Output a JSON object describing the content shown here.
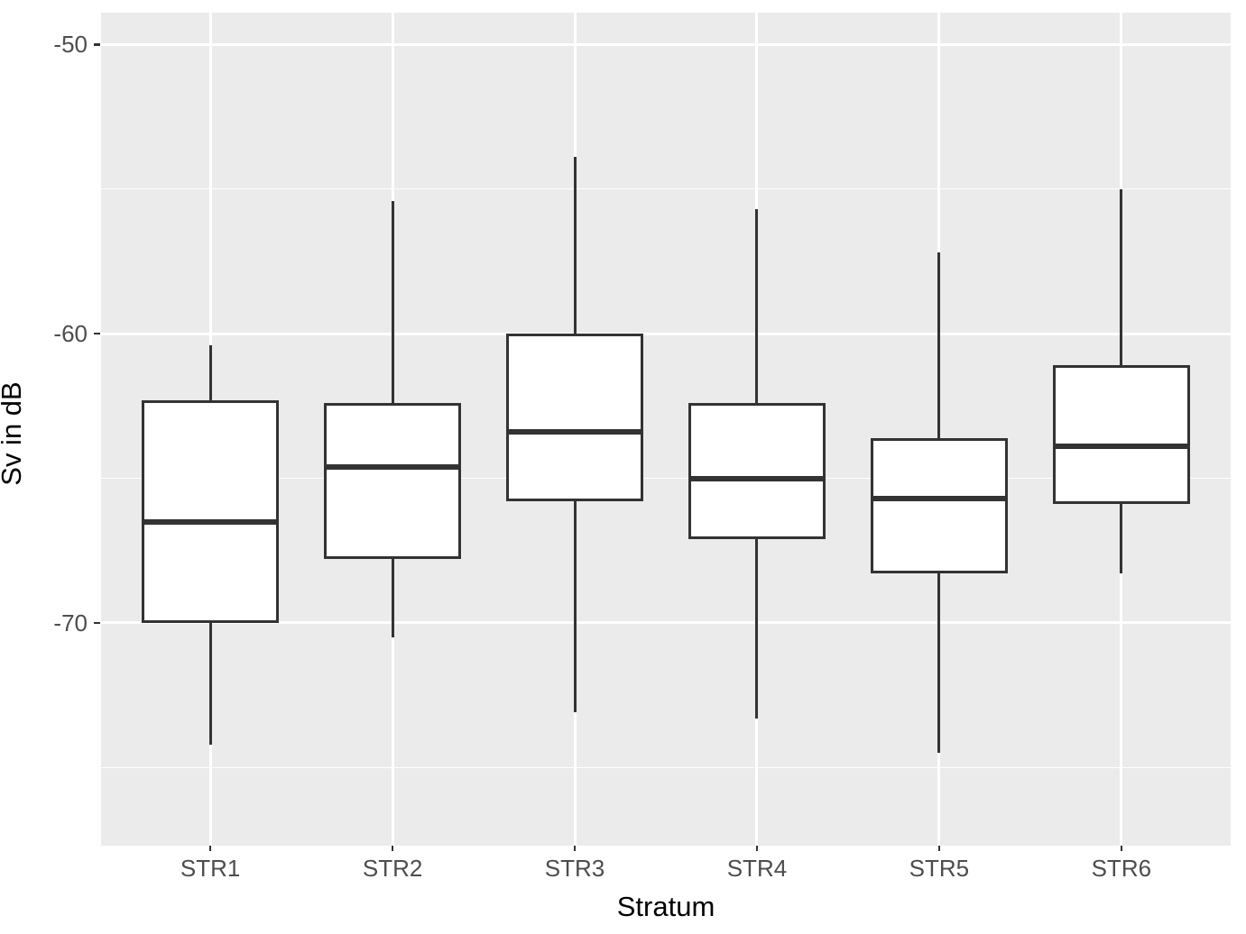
{
  "chart_data": {
    "type": "boxplot",
    "title": "",
    "xlabel": "Stratum",
    "ylabel": "Sv in dB",
    "categories": [
      "STR1",
      "STR2",
      "STR3",
      "STR4",
      "STR5",
      "STR6"
    ],
    "series": [
      {
        "name": "STR1",
        "whisker_low": -74.2,
        "q1": -70.0,
        "median": -66.5,
        "q3": -62.3,
        "whisker_high": -60.4
      },
      {
        "name": "STR2",
        "whisker_low": -70.5,
        "q1": -67.8,
        "median": -64.6,
        "q3": -62.4,
        "whisker_high": -55.4
      },
      {
        "name": "STR3",
        "whisker_low": -73.1,
        "q1": -65.8,
        "median": -63.4,
        "q3": -60.0,
        "whisker_high": -53.9
      },
      {
        "name": "STR4",
        "whisker_low": -73.3,
        "q1": -67.1,
        "median": -65.0,
        "q3": -62.4,
        "whisker_high": -55.7
      },
      {
        "name": "STR5",
        "whisker_low": -74.5,
        "q1": -68.3,
        "median": -65.7,
        "q3": -63.6,
        "whisker_high": -57.2
      },
      {
        "name": "STR6",
        "whisker_low": -68.3,
        "q1": -65.9,
        "median": -63.9,
        "q3": -61.1,
        "whisker_high": -55.0
      }
    ],
    "ylim": [
      -77.7,
      -48.9
    ],
    "yticks_major": [
      -50,
      -60,
      -70
    ],
    "yticks_minor": [
      -55,
      -65,
      -75
    ],
    "grid": "major-and-minor-horizontal, major-vertical-at-categories",
    "legend": "none",
    "style": {
      "panel_bg": "#EBEBEB",
      "grid_color": "#FFFFFF",
      "box_fill": "#FFFFFF",
      "box_stroke": "#333333",
      "tick_label_color": "#4D4D4D",
      "axis_title_color": "#000000"
    }
  }
}
